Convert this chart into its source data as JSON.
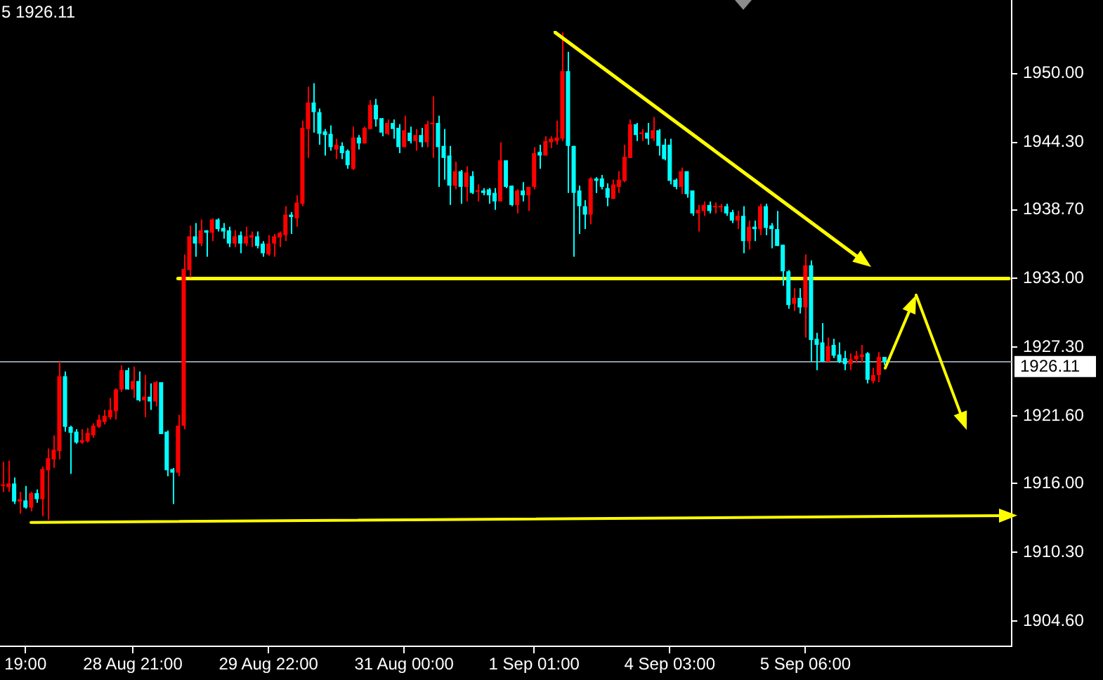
{
  "chart_data": {
    "type": "candlestick",
    "annotations": [
      "5 1926.11"
    ],
    "categories": [
      null,
      null,
      null,
      null,
      "19:00",
      null,
      null,
      null,
      null,
      null,
      null,
      null,
      null,
      null,
      null,
      null,
      null,
      null,
      null,
      null,
      null,
      null,
      null,
      "28 Aug 21:00",
      null,
      null,
      null,
      null,
      null,
      null,
      null,
      null,
      null,
      null,
      null,
      null,
      null,
      null,
      null,
      null,
      null,
      null,
      null,
      null,
      null,
      null,
      null,
      "29 Aug 22:00",
      null,
      null,
      null,
      null,
      null,
      null,
      null,
      null,
      null,
      null,
      null,
      null,
      null,
      null,
      null,
      null,
      null,
      null,
      null,
      null,
      null,
      null,
      null,
      "31 Aug 00:00",
      null,
      null,
      null,
      null,
      null,
      null,
      null,
      null,
      null,
      null,
      null,
      null,
      null,
      null,
      null,
      null,
      null,
      null,
      null,
      null,
      null,
      null,
      "1 Sep 01:00",
      null,
      null,
      null,
      null,
      null,
      null,
      null,
      null,
      null,
      null,
      null,
      null,
      null,
      null,
      null,
      null,
      null,
      null,
      null,
      null,
      null,
      null,
      null,
      "4 Sep 03:00",
      null,
      null,
      null,
      null,
      null,
      null,
      null,
      null,
      null,
      null,
      null,
      null,
      null,
      null,
      null,
      null,
      null,
      null,
      null,
      null,
      null,
      null,
      null,
      "5 Sep 06:00",
      null,
      null,
      null,
      null,
      null,
      null,
      null,
      null,
      null,
      null,
      null,
      null,
      null,
      null,
      null,
      null,
      null,
      null,
      null,
      null,
      null,
      null,
      null,
      null,
      null,
      null,
      null,
      null,
      null,
      null,
      null,
      null,
      null,
      null,
      null,
      null
    ],
    "ohlc": [
      [
        1915.8,
        1917.8,
        1915.3,
        1915.9
      ],
      [
        1915.7,
        1917.9,
        1915.3,
        1916.0
      ],
      [
        1916.0,
        1916.5,
        1914.3,
        1914.5
      ],
      [
        1914.5,
        1915.3,
        1913.5,
        1914.7
      ],
      [
        1914.6,
        1915.8,
        1913.9,
        1914.0
      ],
      [
        1914.0,
        1915.3,
        1913.7,
        1915.2
      ],
      [
        1915.2,
        1915.5,
        1914.4,
        1914.7
      ],
      [
        1914.7,
        1917.4,
        1913.3,
        1917.2
      ],
      [
        1917.1,
        1918.9,
        1913.0,
        1918.1
      ],
      [
        1918.0,
        1920.0,
        1917.3,
        1918.8
      ],
      [
        1918.7,
        1926.1,
        1918.0,
        1924.9
      ],
      [
        1924.9,
        1925.3,
        1920.3,
        1920.7
      ],
      [
        1920.7,
        1920.8,
        1916.8,
        1920.2
      ],
      [
        1920.3,
        1920.5,
        1919.3,
        1919.4
      ],
      [
        1919.4,
        1920.5,
        1919.3,
        1919.6
      ],
      [
        1919.5,
        1920.6,
        1919.4,
        1920.2
      ],
      [
        1920.0,
        1921.0,
        1919.8,
        1920.8
      ],
      [
        1920.7,
        1921.7,
        1920.6,
        1921.3
      ],
      [
        1921.1,
        1922.1,
        1920.9,
        1921.6
      ],
      [
        1921.5,
        1923.1,
        1921.3,
        1922.1
      ],
      [
        1922.0,
        1923.9,
        1921.3,
        1923.8
      ],
      [
        1923.8,
        1925.8,
        1923.6,
        1925.4
      ],
      [
        1925.4,
        1925.6,
        1923.8,
        1923.8
      ],
      [
        1923.8,
        1925.7,
        1923.1,
        1924.5
      ],
      [
        1924.5,
        1925.3,
        1922.8,
        1922.9
      ],
      [
        1922.9,
        1925.0,
        1921.5,
        1923.2
      ],
      [
        1923.2,
        1924.3,
        1922.1,
        1922.8
      ],
      [
        1922.8,
        1924.5,
        1922.4,
        1924.4
      ],
      [
        1924.4,
        1924.4,
        1920.1,
        1920.1
      ],
      [
        1920.3,
        1920.4,
        1916.6,
        1917.1
      ],
      [
        1917.2,
        1917.3,
        1914.3,
        1916.9
      ],
      [
        1916.9,
        1921.7,
        1916.6,
        1920.8
      ],
      [
        1920.8,
        1935.0,
        1920.5,
        1933.8
      ],
      [
        1933.7,
        1937.4,
        1933.1,
        1936.5
      ],
      [
        1936.5,
        1937.6,
        1934.8,
        1935.9
      ],
      [
        1935.9,
        1937.9,
        1935.7,
        1937.0
      ],
      [
        1937.0,
        1937.0,
        1934.8,
        1936.8
      ],
      [
        1936.8,
        1938.0,
        1936.1,
        1937.9
      ],
      [
        1937.9,
        1938.0,
        1936.9,
        1937.1
      ],
      [
        1937.2,
        1937.6,
        1936.3,
        1936.9
      ],
      [
        1937.0,
        1937.3,
        1935.6,
        1935.9
      ],
      [
        1935.9,
        1937.0,
        1935.6,
        1936.5
      ],
      [
        1936.6,
        1936.9,
        1935.1,
        1935.9
      ],
      [
        1935.9,
        1937.3,
        1935.7,
        1936.5
      ],
      [
        1936.4,
        1936.9,
        1935.6,
        1936.6
      ],
      [
        1936.5,
        1936.9,
        1935.5,
        1935.7
      ],
      [
        1935.9,
        1936.1,
        1934.8,
        1935.1
      ],
      [
        1935.0,
        1936.6,
        1934.9,
        1935.9
      ],
      [
        1935.9,
        1936.7,
        1934.8,
        1936.5
      ],
      [
        1936.4,
        1936.9,
        1935.6,
        1936.8
      ],
      [
        1936.6,
        1939.0,
        1936.1,
        1938.3
      ],
      [
        1938.3,
        1938.5,
        1936.7,
        1938.1
      ],
      [
        1938.0,
        1939.9,
        1937.3,
        1939.3
      ],
      [
        1939.2,
        1946.1,
        1939.0,
        1945.5
      ],
      [
        1945.4,
        1948.9,
        1943.0,
        1947.6
      ],
      [
        1947.6,
        1949.2,
        1945.1,
        1946.8
      ],
      [
        1946.8,
        1947.1,
        1944.1,
        1945.0
      ],
      [
        1945.2,
        1945.4,
        1943.2,
        1944.9
      ],
      [
        1945.0,
        1945.7,
        1943.6,
        1943.9
      ],
      [
        1943.7,
        1944.6,
        1942.9,
        1944.1
      ],
      [
        1944.0,
        1944.3,
        1942.9,
        1943.4
      ],
      [
        1943.6,
        1943.7,
        1942.1,
        1942.4
      ],
      [
        1942.1,
        1945.6,
        1942.0,
        1944.7
      ],
      [
        1944.7,
        1944.9,
        1943.7,
        1944.2
      ],
      [
        1944.2,
        1945.6,
        1944.2,
        1945.5
      ],
      [
        1945.4,
        1947.8,
        1945.4,
        1947.4
      ],
      [
        1947.4,
        1947.9,
        1945.6,
        1946.2
      ],
      [
        1946.3,
        1946.3,
        1944.8,
        1945.1
      ],
      [
        1945.0,
        1946.2,
        1944.9,
        1945.9
      ],
      [
        1945.9,
        1946.2,
        1944.6,
        1945.4
      ],
      [
        1945.5,
        1945.8,
        1943.4,
        1943.9
      ],
      [
        1943.9,
        1946.5,
        1943.9,
        1945.3
      ],
      [
        1945.1,
        1945.6,
        1944.2,
        1944.4
      ],
      [
        1944.4,
        1945.4,
        1943.6,
        1944.9
      ],
      [
        1944.9,
        1945.5,
        1943.9,
        1944.3
      ],
      [
        1944.3,
        1946.1,
        1943.9,
        1945.8
      ],
      [
        1945.8,
        1948.1,
        1943.0,
        1945.9
      ],
      [
        1945.9,
        1946.5,
        1940.6,
        1943.9
      ],
      [
        1944.0,
        1945.4,
        1941.2,
        1943.0
      ],
      [
        1943.2,
        1944.0,
        1939.1,
        1940.7
      ],
      [
        1940.7,
        1942.7,
        1940.4,
        1941.9
      ],
      [
        1941.9,
        1942.0,
        1939.2,
        1940.6
      ],
      [
        1940.6,
        1942.3,
        1939.4,
        1941.8
      ],
      [
        1941.5,
        1941.9,
        1940.0,
        1940.1
      ],
      [
        1940.2,
        1940.8,
        1939.4,
        1940.3
      ],
      [
        1940.3,
        1940.5,
        1939.9,
        1940.1
      ],
      [
        1940.4,
        1940.5,
        1939.2,
        1939.9
      ],
      [
        1940.1,
        1940.5,
        1938.7,
        1939.4
      ],
      [
        1939.4,
        1944.3,
        1939.4,
        1942.8
      ],
      [
        1942.8,
        1942.8,
        1940.5,
        1940.6
      ],
      [
        1940.7,
        1940.7,
        1939.0,
        1939.1
      ],
      [
        1939.1,
        1940.4,
        1938.4,
        1940.3
      ],
      [
        1940.3,
        1941.0,
        1939.4,
        1939.9
      ],
      [
        1939.9,
        1940.6,
        1938.6,
        1940.6
      ],
      [
        1940.6,
        1943.9,
        1940.4,
        1943.4
      ],
      [
        1943.5,
        1944.1,
        1942.1,
        1943.2
      ],
      [
        1943.2,
        1944.8,
        1943.2,
        1944.4
      ],
      [
        1944.3,
        1944.8,
        1943.8,
        1944.6
      ],
      [
        1944.4,
        1946.1,
        1944.1,
        1944.7
      ],
      [
        1944.6,
        1953.4,
        1944.4,
        1950.2
      ],
      [
        1950.2,
        1951.8,
        1940.1,
        1944.0
      ],
      [
        1944.0,
        1944.0,
        1934.8,
        1940.1
      ],
      [
        1940.3,
        1940.7,
        1936.7,
        1939.0
      ],
      [
        1939.0,
        1939.5,
        1937.1,
        1938.3
      ],
      [
        1938.3,
        1941.4,
        1937.5,
        1941.3
      ],
      [
        1941.3,
        1941.4,
        1940.1,
        1941.1
      ],
      [
        1941.3,
        1941.6,
        1940.4,
        1940.6
      ],
      [
        1940.5,
        1940.9,
        1939.0,
        1939.7
      ],
      [
        1939.6,
        1941.2,
        1939.6,
        1940.8
      ],
      [
        1940.6,
        1941.9,
        1940.1,
        1941.2
      ],
      [
        1941.1,
        1944.1,
        1941.0,
        1943.1
      ],
      [
        1943.0,
        1946.2,
        1943.0,
        1945.8
      ],
      [
        1945.8,
        1945.9,
        1944.4,
        1944.9
      ],
      [
        1945.0,
        1945.4,
        1944.4,
        1945.1
      ],
      [
        1945.1,
        1945.9,
        1944.1,
        1944.6
      ],
      [
        1944.6,
        1946.4,
        1944.4,
        1945.3
      ],
      [
        1945.3,
        1945.4,
        1943.2,
        1944.0
      ],
      [
        1944.1,
        1944.6,
        1942.8,
        1942.9
      ],
      [
        1944.1,
        1944.6,
        1940.8,
        1941.1
      ],
      [
        1941.2,
        1941.3,
        1940.4,
        1940.6
      ],
      [
        1940.6,
        1942.2,
        1940.0,
        1941.9
      ],
      [
        1941.9,
        1941.9,
        1939.7,
        1940.0
      ],
      [
        1940.3,
        1940.3,
        1938.2,
        1938.4
      ],
      [
        1938.4,
        1939.1,
        1936.9,
        1938.7
      ],
      [
        1938.6,
        1939.4,
        1938.2,
        1939.1
      ],
      [
        1939.1,
        1939.4,
        1938.4,
        1938.6
      ],
      [
        1938.9,
        1939.3,
        1938.4,
        1939.0
      ],
      [
        1938.9,
        1939.2,
        1938.5,
        1939.0
      ],
      [
        1939.0,
        1939.2,
        1938.2,
        1938.4
      ],
      [
        1938.5,
        1938.7,
        1937.6,
        1937.8
      ],
      [
        1937.8,
        1938.6,
        1937.1,
        1938.2
      ],
      [
        1938.2,
        1939.0,
        1935.1,
        1936.1
      ],
      [
        1936.1,
        1937.8,
        1935.4,
        1937.3
      ],
      [
        1937.3,
        1937.8,
        1936.1,
        1937.1
      ],
      [
        1937.1,
        1939.2,
        1936.6,
        1939.0
      ],
      [
        1939.0,
        1939.2,
        1936.6,
        1937.2
      ],
      [
        1937.4,
        1937.6,
        1935.5,
        1937.1
      ],
      [
        1937.1,
        1938.6,
        1935.7,
        1935.7
      ],
      [
        1935.8,
        1935.8,
        1932.4,
        1933.6
      ],
      [
        1933.6,
        1933.7,
        1930.5,
        1930.8
      ],
      [
        1930.9,
        1932.2,
        1930.3,
        1931.4
      ],
      [
        1931.4,
        1932.2,
        1930.1,
        1930.6
      ],
      [
        1930.6,
        1935.0,
        1928.1,
        1934.1
      ],
      [
        1934.1,
        1934.5,
        1926.1,
        1927.9
      ],
      [
        1928.0,
        1928.5,
        1925.4,
        1927.5
      ],
      [
        1927.7,
        1929.3,
        1926.1,
        1926.1
      ],
      [
        1926.1,
        1928.1,
        1926.1,
        1927.4
      ],
      [
        1927.5,
        1928.0,
        1926.4,
        1926.6
      ],
      [
        1926.7,
        1927.7,
        1926.0,
        1926.1
      ],
      [
        1926.4,
        1927.0,
        1925.4,
        1925.9
      ],
      [
        1925.9,
        1926.8,
        1925.4,
        1926.3
      ],
      [
        1926.3,
        1927.0,
        1926.0,
        1926.6
      ],
      [
        1926.5,
        1927.5,
        1926.0,
        1926.7
      ],
      [
        1926.8,
        1926.9,
        1924.3,
        1924.6
      ],
      [
        1924.5,
        1925.6,
        1924.3,
        1925.0
      ],
      [
        1925.0,
        1926.9,
        1924.4,
        1926.5
      ],
      [
        1926.5,
        1926.5,
        1925.8,
        1926.1
      ],
      null,
      null,
      null,
      null,
      null,
      null,
      null,
      null,
      null,
      null,
      null,
      null,
      null,
      null,
      null,
      null,
      null,
      null,
      null,
      null,
      null,
      null
    ],
    "colors": [
      "#ff0000",
      "#ff0000",
      "#00ffff",
      "#ff0000",
      "#00ffff",
      "#ff0000",
      "#00ffff",
      "#ff0000",
      "#ff0000",
      "#ff0000",
      "#ff0000",
      "#00ffff",
      "#00ffff",
      "#00ffff",
      "#ff0000",
      "#ff0000",
      "#ff0000",
      "#ff0000",
      "#ff0000",
      "#ff0000",
      "#ff0000",
      "#ff0000",
      "#00ffff",
      "#ff0000",
      "#00ffff",
      "#ff0000",
      "#00ffff",
      "#ff0000",
      "#00ffff",
      "#00ffff",
      "#00ffff",
      "#ff0000",
      "#ff0000",
      "#ff0000",
      "#00ffff",
      "#ff0000",
      "#00ffff",
      "#ff0000",
      "#00ffff",
      "#00ffff",
      "#00ffff",
      "#ff0000",
      "#00ffff",
      "#ff0000",
      "#ff0000",
      "#00ffff",
      "#00ffff",
      "#ff0000",
      "#ff0000",
      "#ff0000",
      "#ff0000",
      "#00ffff",
      "#ff0000",
      "#ff0000",
      "#ff0000",
      "#00ffff",
      "#00ffff",
      "#00ffff",
      "#00ffff",
      "#ff0000",
      "#00ffff",
      "#00ffff",
      "#ff0000",
      "#00ffff",
      "#ff0000",
      "#ff0000",
      "#00ffff",
      "#00ffff",
      "#ff0000",
      "#00ffff",
      "#00ffff",
      "#ff0000",
      "#00ffff",
      "#ff0000",
      "#00ffff",
      "#ff0000",
      "#ff0000",
      "#00ffff",
      "#00ffff",
      "#00ffff",
      "#ff0000",
      "#00ffff",
      "#ff0000",
      "#00ffff",
      "#ff0000",
      "#00ffff",
      "#00ffff",
      "#00ffff",
      "#ff0000",
      "#00ffff",
      "#00ffff",
      "#ff0000",
      "#00ffff",
      "#ff0000",
      "#ff0000",
      "#00ffff",
      "#ff0000",
      "#ff0000",
      "#ff0000",
      "#ff0000",
      "#00ffff",
      "#00ffff",
      "#00ffff",
      "#00ffff",
      "#ff0000",
      "#00ffff",
      "#00ffff",
      "#00ffff",
      "#ff0000",
      "#ff0000",
      "#ff0000",
      "#ff0000",
      "#00ffff",
      "#ff0000",
      "#00ffff",
      "#ff0000",
      "#00ffff",
      "#00ffff",
      "#00ffff",
      "#00ffff",
      "#ff0000",
      "#00ffff",
      "#00ffff",
      "#ff0000",
      "#ff0000",
      "#00ffff",
      "#ff0000",
      "#ff0000",
      "#00ffff",
      "#00ffff",
      "#ff0000",
      "#00ffff",
      "#ff0000",
      "#00ffff",
      "#ff0000",
      "#00ffff",
      "#00ffff",
      "#00ffff",
      "#00ffff",
      "#00ffff",
      "#ff0000",
      "#00ffff",
      "#ff0000",
      "#00ffff",
      "#00ffff",
      "#00ffff",
      "#ff0000",
      "#00ffff",
      "#00ffff",
      "#00ffff",
      "#ff0000",
      "#ff0000",
      "#ff0000",
      "#00ffff",
      "#ff0000",
      "#ff0000",
      "#00ffff",
      null,
      null,
      null,
      null,
      null,
      null,
      null,
      null,
      null,
      null,
      null,
      null,
      null,
      null,
      null,
      null,
      null,
      null,
      null,
      null,
      null,
      null
    ],
    "series": [
      {
        "type": "line",
        "color": "#ffff00",
        "values": [
          null,
          null,
          null,
          null,
          null,
          null,
          null,
          null,
          null,
          null,
          null,
          null,
          null,
          null,
          null,
          null,
          null,
          null,
          null,
          null,
          null,
          null,
          null,
          null,
          null,
          null,
          null,
          null,
          null,
          null,
          null,
          1933.0,
          null,
          null,
          null,
          null,
          null,
          null,
          null,
          null,
          null,
          null,
          null,
          null,
          null,
          null,
          null,
          null,
          null,
          null,
          null,
          null,
          null,
          null,
          null,
          null,
          null,
          null,
          null,
          null,
          null,
          null,
          null,
          null,
          null,
          null,
          null,
          null,
          null,
          null,
          null,
          null,
          null,
          null,
          null,
          null,
          null,
          null,
          null,
          null,
          null,
          null,
          null,
          null,
          null,
          null,
          null,
          null,
          null,
          null,
          null,
          null,
          null,
          null,
          null,
          null,
          null,
          null,
          null,
          null,
          null,
          null,
          null,
          null,
          null,
          null,
          null,
          null,
          null,
          null,
          null,
          null,
          null,
          null,
          null,
          null,
          null,
          null,
          null,
          null,
          null,
          null,
          null,
          null,
          null,
          null,
          null,
          null,
          null,
          null,
          null,
          null,
          null,
          null,
          null,
          null,
          null,
          null,
          null,
          null,
          null,
          null,
          null,
          null,
          null,
          null,
          null,
          null,
          null,
          null,
          null,
          null,
          null,
          null,
          null,
          null,
          null,
          null,
          null,
          null,
          null,
          null,
          null,
          null,
          null,
          null,
          null,
          null,
          null,
          null,
          null,
          null,
          null,
          null,
          null,
          null,
          null,
          null,
          1933.0
        ]
      }
    ],
    "ref_lines": [
      {
        "axis": "y",
        "value": 1926.11,
        "label": "1926.11",
        "color": "#8c99a6"
      }
    ],
    "ylim": [
      1902.5,
      1956.1
    ],
    "yticks": [
      {
        "value": 1904.6,
        "label": "1904.60"
      },
      {
        "value": 1910.3,
        "label": "1910.30"
      },
      {
        "value": 1916,
        "label": "1916.00"
      },
      {
        "value": 1921.6,
        "label": "1921.60"
      },
      {
        "value": 1927.3,
        "label": "1927.30"
      },
      {
        "value": 1933,
        "label": "1933.00"
      },
      {
        "value": 1938.7,
        "label": "1938.70"
      },
      {
        "value": 1944.3,
        "label": "1944.30"
      },
      {
        "value": 1950,
        "label": "1950.00"
      }
    ]
  }
}
